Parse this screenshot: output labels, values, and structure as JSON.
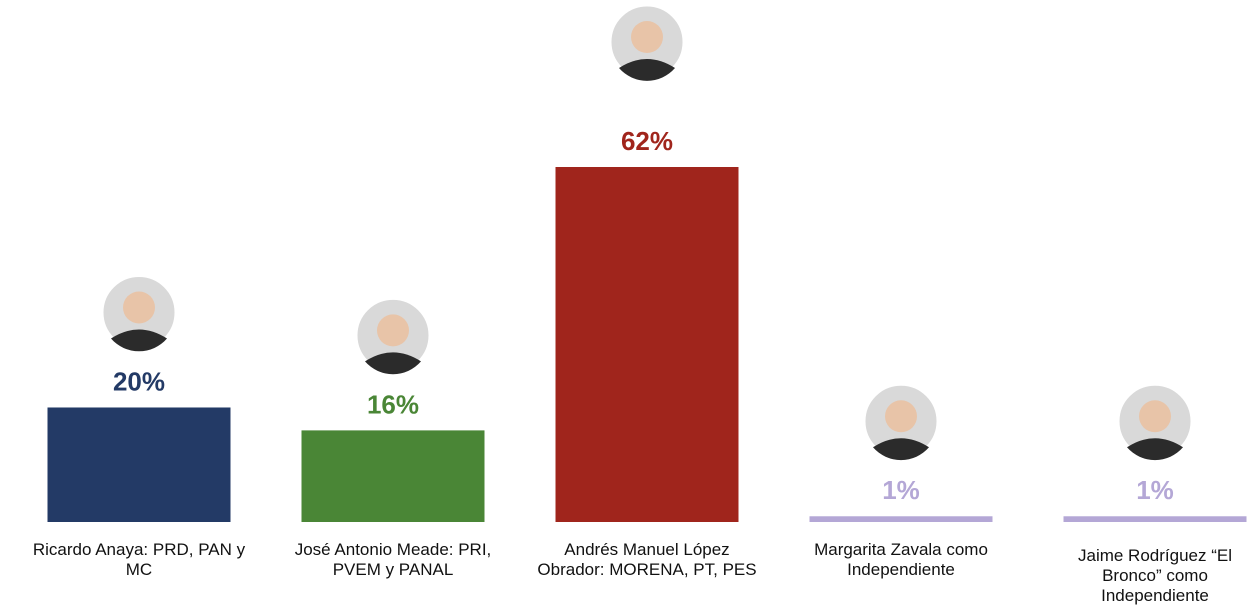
{
  "chart_data": {
    "type": "bar",
    "categories": [
      "Ricardo Anaya: PRD, PAN y MC",
      "José Antonio Meade: PRI, PVEM y PANAL",
      "Andrés Manuel López Obrador: MORENA, PT, PES",
      "Margarita Zavala como Independiente",
      "Jaime Rodríguez “El Bronco” como Independiente"
    ],
    "values": [
      20,
      16,
      62,
      1,
      1
    ],
    "value_labels": [
      "20%",
      "16%",
      "62%",
      "1%",
      "1%"
    ],
    "colors": [
      "#233a66",
      "#4a8636",
      "#a0251c",
      "#b4a7d6",
      "#b4a7d6"
    ]
  }
}
